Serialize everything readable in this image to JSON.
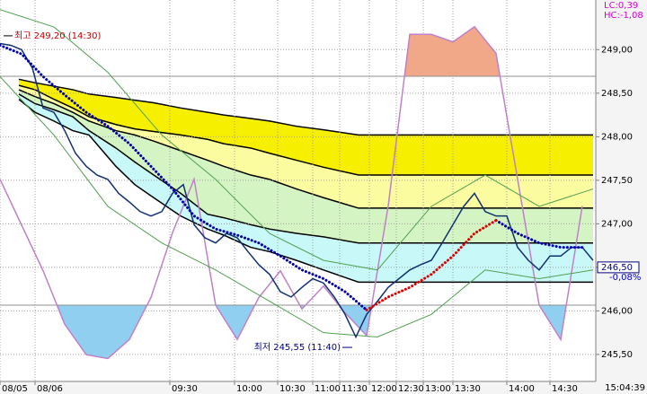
{
  "chart_data": {
    "type": "line",
    "xlim": [
      0,
      221
    ],
    "ylim": [
      245.19,
      249.57
    ],
    "y2lim": [
      0,
      100
    ],
    "grid": true,
    "yticks": [
      {
        "value": 245.5,
        "label": "245,50"
      },
      {
        "value": 246,
        "label": "246,00"
      },
      {
        "value": 246.5,
        "label": "246,50"
      },
      {
        "value": 247,
        "label": "247,00"
      },
      {
        "value": 247.5,
        "label": "247,50"
      },
      {
        "value": 248,
        "label": "248,00"
      },
      {
        "value": 248.5,
        "label": "248,50"
      },
      {
        "value": 249,
        "label": "249,00"
      }
    ],
    "xticks": [
      {
        "value": 0,
        "label": "08/05"
      },
      {
        "value": 13,
        "label": "08/06"
      },
      {
        "value": 63,
        "label": "09:30"
      },
      {
        "value": 87,
        "label": "10:00"
      },
      {
        "value": 103,
        "label": "10:30"
      },
      {
        "value": 116,
        "label": "11:00"
      },
      {
        "value": 126,
        "label": "11:30"
      },
      {
        "value": 137,
        "label": "12:00"
      },
      {
        "value": 147,
        "label": "12:30"
      },
      {
        "value": 157,
        "label": "13:00"
      },
      {
        "value": 168,
        "label": "13:30"
      },
      {
        "value": 188,
        "label": "14:00"
      },
      {
        "value": 204,
        "label": "14:30"
      }
    ],
    "time_label": "15:04:39",
    "lc_label": "LC:0,39",
    "hc_label": "HC:-1,08",
    "high": {
      "x": 0,
      "value": 249.2,
      "text": "최고 249,20 (14:30)"
    },
    "low": {
      "x": 131,
      "value": 245.55,
      "text": "최저 245,55 (11:40)"
    },
    "last_price": {
      "value": 246.5,
      "label": "246,50"
    },
    "change_label": "-0,08%",
    "bands": {
      "x": [
        7,
        13,
        20,
        27,
        33,
        43,
        50,
        57,
        67,
        77,
        83,
        93,
        100,
        110,
        120,
        133,
        220
      ],
      "colors": [
        "#f6f000",
        "#fbfba0",
        "#d4f4c4",
        "#c8f8f8"
      ],
      "line_color": "#000000",
      "lines": [
        [
          248.66,
          248.62,
          248.58,
          248.54,
          248.49,
          248.45,
          248.42,
          248.39,
          248.33,
          248.28,
          248.25,
          248.21,
          248.18,
          248.12,
          248.08,
          248.02,
          248.02
        ],
        [
          248.59,
          248.54,
          248.43,
          248.33,
          248.23,
          248.14,
          248.09,
          248.06,
          248.02,
          247.97,
          247.92,
          247.87,
          247.81,
          247.73,
          247.65,
          247.56,
          247.56
        ],
        [
          248.54,
          248.46,
          248.38,
          248.28,
          248.18,
          248.07,
          248.02,
          247.95,
          247.84,
          247.73,
          247.66,
          247.56,
          247.51,
          247.4,
          247.3,
          247.18,
          247.18
        ],
        [
          248.49,
          248.38,
          248.31,
          248.23,
          248.07,
          247.87,
          247.71,
          247.56,
          247.35,
          247.11,
          247.07,
          246.99,
          246.94,
          246.89,
          246.85,
          246.78,
          246.78
        ],
        [
          248.43,
          248.28,
          248.18,
          248.07,
          248.02,
          247.66,
          247.45,
          247.3,
          247.09,
          246.94,
          246.87,
          246.73,
          246.68,
          246.58,
          246.47,
          246.33,
          246.33
        ]
      ]
    },
    "series": [
      {
        "color": "#c080c8",
        "axis": "y2",
        "style": "solid",
        "fill_below": {
          "level": 20,
          "color": "#90cff0"
        },
        "fill_above": {
          "level": 80,
          "color": "#f0a888"
        },
        "x": [
          0,
          8,
          16,
          24,
          32,
          40,
          48,
          56,
          64,
          72,
          80,
          88,
          96,
          104,
          112,
          120,
          128,
          136,
          144,
          152,
          160,
          168,
          176,
          184,
          192,
          200,
          208,
          216
        ],
        "values": [
          53,
          41,
          29,
          15,
          7,
          6,
          11,
          22,
          39,
          53,
          20,
          11,
          22,
          29,
          19,
          25,
          18,
          12,
          46,
          91,
          91,
          89,
          93,
          86,
          53,
          20,
          11,
          46
        ]
      },
      {
        "color": "#50a050",
        "style": "thin",
        "x": [
          0,
          20,
          40,
          60,
          80,
          100,
          120,
          140,
          160,
          180,
          200,
          220
        ],
        "values": [
          249.46,
          249.26,
          248.74,
          248.02,
          247.51,
          246.89,
          246.58,
          246.47,
          247.2,
          247.56,
          247.2,
          247.4
        ]
      },
      {
        "color": "#50a050",
        "style": "thin",
        "x": [
          0,
          20,
          40,
          60,
          80,
          100,
          120,
          140,
          160,
          180,
          200,
          220
        ],
        "values": [
          248.69,
          248.02,
          247.2,
          246.78,
          246.47,
          246.11,
          245.75,
          245.7,
          245.96,
          246.47,
          246.37,
          246.47
        ]
      },
      {
        "color": "#103070",
        "style": "solid",
        "x": [
          0,
          4,
          8,
          12,
          16,
          20,
          24,
          28,
          32,
          36,
          40,
          44,
          48,
          52,
          56,
          60,
          64,
          68,
          72,
          76,
          80,
          84,
          88,
          92,
          96,
          100,
          104,
          108,
          112,
          116,
          120,
          124,
          128,
          132,
          136,
          140,
          144,
          148,
          152,
          156,
          160,
          164,
          168,
          172,
          176,
          180,
          184,
          188,
          192,
          196,
          200,
          204,
          208,
          212,
          216,
          220
        ],
        "values": [
          249.07,
          249.05,
          249.0,
          248.79,
          248.33,
          248.28,
          248.07,
          247.81,
          247.66,
          247.56,
          247.51,
          247.35,
          247.25,
          247.14,
          247.09,
          247.14,
          247.35,
          247.45,
          246.99,
          246.84,
          246.78,
          246.89,
          246.84,
          246.68,
          246.53,
          246.42,
          246.22,
          246.16,
          246.27,
          246.37,
          246.32,
          246.16,
          245.96,
          245.7,
          245.96,
          246.11,
          246.27,
          246.37,
          246.47,
          246.53,
          246.58,
          246.78,
          246.99,
          247.2,
          247.35,
          247.14,
          247.09,
          247.09,
          246.73,
          246.58,
          246.47,
          246.63,
          246.63,
          246.73,
          246.73,
          246.58
        ]
      },
      {
        "color": "#0000a8",
        "style": "dotted",
        "x": [
          0,
          8,
          16,
          24,
          32,
          40,
          48,
          56,
          64,
          72,
          80,
          88,
          96,
          104,
          112,
          120,
          128,
          136,
          144,
          152,
          160,
          168,
          176,
          184,
          192,
          200,
          208,
          216
        ],
        "values": [
          249.05,
          248.95,
          248.69,
          248.48,
          248.28,
          248.12,
          247.92,
          247.66,
          247.4,
          247.09,
          246.94,
          246.87,
          246.78,
          246.63,
          246.47,
          246.37,
          246.22,
          246.01,
          null,
          null,
          null,
          null,
          null,
          247.04,
          246.89,
          246.78,
          246.73,
          246.73
        ]
      },
      {
        "color": "#e00000",
        "style": "dotted",
        "x": [
          0,
          8,
          16,
          24,
          32,
          40,
          48,
          56,
          64,
          72,
          80,
          88,
          96,
          104,
          112,
          120,
          128,
          136,
          144,
          152,
          160,
          168,
          176,
          184,
          192,
          200,
          208,
          216
        ],
        "values": [
          null,
          null,
          null,
          null,
          null,
          null,
          null,
          null,
          null,
          null,
          null,
          null,
          null,
          null,
          null,
          null,
          null,
          246.01,
          246.16,
          246.27,
          246.42,
          246.63,
          246.89,
          247.04,
          null,
          null,
          null,
          null
        ]
      }
    ]
  }
}
